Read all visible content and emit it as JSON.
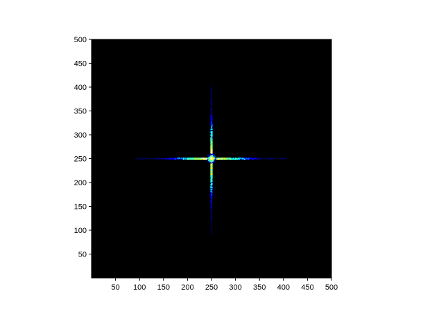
{
  "chart_data": {
    "type": "heatmap",
    "title": "",
    "xlabel": "",
    "ylabel": "",
    "xlim": [
      0,
      500
    ],
    "ylim": [
      0,
      500
    ],
    "x_ticks": [
      50,
      100,
      150,
      200,
      250,
      300,
      350,
      400,
      450,
      500
    ],
    "y_ticks": [
      50,
      100,
      150,
      200,
      250,
      300,
      350,
      400,
      450,
      500
    ],
    "grid": false,
    "legend": "none",
    "background_color": "#000000",
    "colormap": [
      "#000060",
      "#0000ff",
      "#00ffff",
      "#80ff80",
      "#ffff00",
      "#ffffff"
    ],
    "peak_center": [
      250,
      250
    ],
    "horizontal_streak_x_range": [
      95,
      408
    ],
    "vertical_streak_y_range": [
      93,
      400
    ]
  }
}
